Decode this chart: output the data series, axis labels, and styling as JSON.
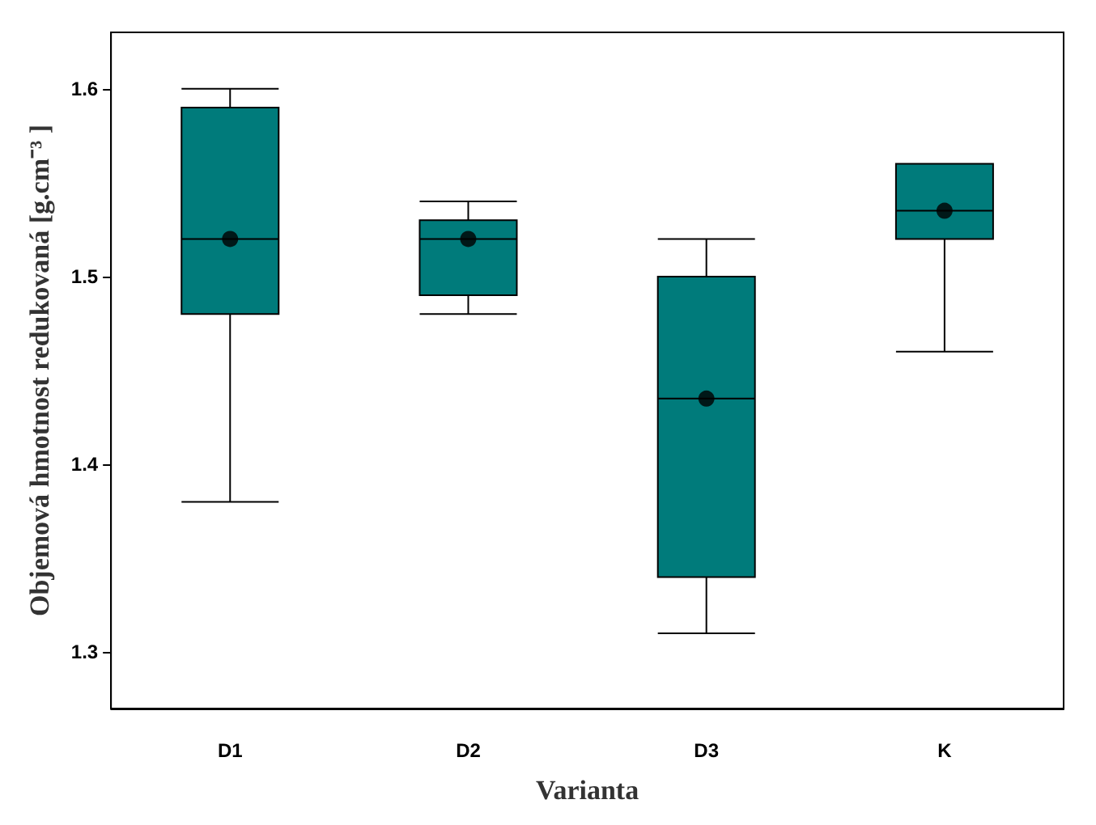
{
  "chart_data": {
    "type": "box",
    "xlabel": "Varianta",
    "ylabel": "Objemová hmotnost redukovaná [g.cm⁻³ ]",
    "categories": [
      "D1",
      "D2",
      "D3",
      "K"
    ],
    "color": "#007b7b",
    "marker": "circle",
    "boxes": [
      {
        "low": 1.38,
        "q1": 1.48,
        "median": 1.52,
        "q3": 1.59,
        "high": 1.6,
        "mean": 1.52
      },
      {
        "low": 1.48,
        "q1": 1.49,
        "median": 1.52,
        "q3": 1.53,
        "high": 1.54,
        "mean": 1.52
      },
      {
        "low": 1.31,
        "q1": 1.34,
        "median": 1.435,
        "q3": 1.5,
        "high": 1.52,
        "mean": 1.435
      },
      {
        "low": 1.46,
        "q1": 1.52,
        "median": 1.535,
        "q3": 1.56,
        "high": 1.56,
        "mean": 1.535
      }
    ],
    "ylim": [
      1.27,
      1.63
    ],
    "yticks": [
      1.3,
      1.4,
      1.5,
      1.6
    ]
  }
}
